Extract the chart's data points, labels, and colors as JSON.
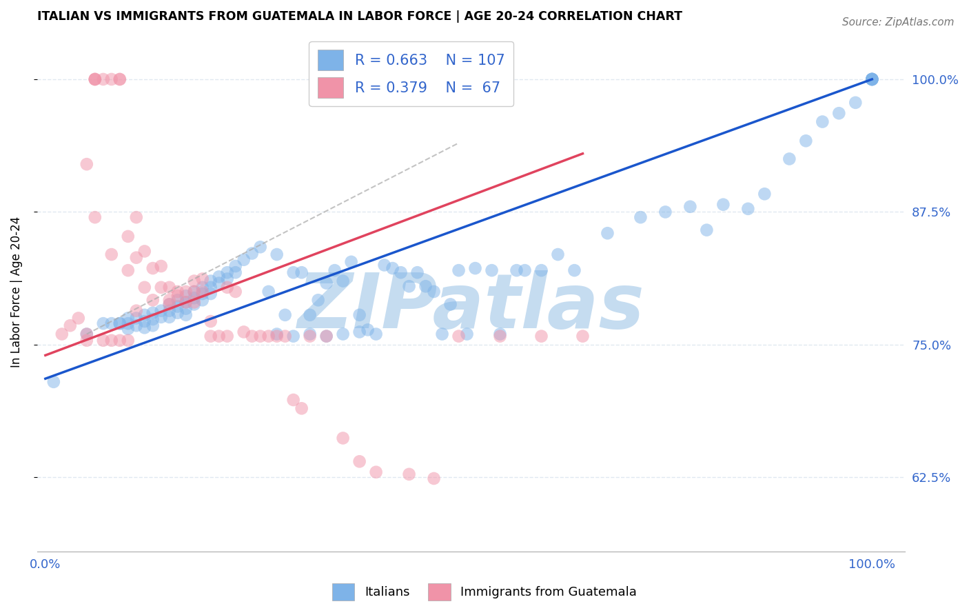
{
  "title": "ITALIAN VS IMMIGRANTS FROM GUATEMALA IN LABOR FORCE | AGE 20-24 CORRELATION CHART",
  "source": "Source: ZipAtlas.com",
  "ylabel": "In Labor Force | Age 20-24",
  "xlim": [
    -0.01,
    1.04
  ],
  "ylim": [
    0.555,
    1.045
  ],
  "yticks": [
    0.625,
    0.75,
    0.875,
    1.0
  ],
  "ytick_labels": [
    "62.5%",
    "75.0%",
    "87.5%",
    "100.0%"
  ],
  "xticks": [
    0.0,
    0.2,
    0.4,
    0.6,
    0.8,
    1.0
  ],
  "xtick_labels": [
    "0.0%",
    "",
    "",
    "",
    "",
    "100.0%"
  ],
  "blue_color": "#7EB3E8",
  "pink_color": "#F093A8",
  "blue_line_color": "#1A56CC",
  "pink_line_color": "#E0435E",
  "watermark": "ZIPatlas",
  "watermark_color": "#C5DCF0",
  "axis_color": "#3366CC",
  "grid_color": "#E0E8F0",
  "blue_scatter_x": [
    0.01,
    0.05,
    0.07,
    0.08,
    0.09,
    0.09,
    0.1,
    0.1,
    0.1,
    0.11,
    0.11,
    0.12,
    0.12,
    0.12,
    0.13,
    0.13,
    0.13,
    0.14,
    0.14,
    0.15,
    0.15,
    0.15,
    0.16,
    0.16,
    0.16,
    0.17,
    0.17,
    0.17,
    0.17,
    0.18,
    0.18,
    0.18,
    0.19,
    0.19,
    0.19,
    0.2,
    0.2,
    0.2,
    0.21,
    0.21,
    0.22,
    0.22,
    0.23,
    0.23,
    0.24,
    0.25,
    0.26,
    0.27,
    0.28,
    0.28,
    0.29,
    0.3,
    0.3,
    0.31,
    0.32,
    0.32,
    0.33,
    0.34,
    0.34,
    0.35,
    0.36,
    0.36,
    0.37,
    0.38,
    0.38,
    0.39,
    0.4,
    0.41,
    0.42,
    0.43,
    0.44,
    0.45,
    0.46,
    0.47,
    0.48,
    0.49,
    0.5,
    0.51,
    0.52,
    0.54,
    0.55,
    0.57,
    0.58,
    0.6,
    0.62,
    0.64,
    0.68,
    0.72,
    0.75,
    0.78,
    0.8,
    0.82,
    0.85,
    0.87,
    0.9,
    0.92,
    0.94,
    0.96,
    0.98,
    1.0,
    1.0,
    1.0,
    1.0,
    1.0,
    1.0,
    1.0
  ],
  "blue_scatter_y": [
    0.715,
    0.76,
    0.77,
    0.77,
    0.77,
    0.77,
    0.775,
    0.77,
    0.765,
    0.775,
    0.768,
    0.778,
    0.772,
    0.766,
    0.78,
    0.774,
    0.768,
    0.782,
    0.776,
    0.788,
    0.782,
    0.776,
    0.792,
    0.786,
    0.78,
    0.796,
    0.79,
    0.784,
    0.778,
    0.8,
    0.794,
    0.788,
    0.804,
    0.798,
    0.792,
    0.81,
    0.804,
    0.798,
    0.814,
    0.808,
    0.818,
    0.812,
    0.824,
    0.818,
    0.83,
    0.836,
    0.842,
    0.8,
    0.835,
    0.76,
    0.778,
    0.818,
    0.758,
    0.818,
    0.76,
    0.778,
    0.792,
    0.808,
    0.758,
    0.82,
    0.81,
    0.76,
    0.828,
    0.762,
    0.778,
    0.764,
    0.76,
    0.825,
    0.822,
    0.818,
    0.805,
    0.818,
    0.805,
    0.8,
    0.76,
    0.788,
    0.82,
    0.76,
    0.822,
    0.82,
    0.76,
    0.82,
    0.82,
    0.82,
    0.835,
    0.82,
    0.855,
    0.87,
    0.875,
    0.88,
    0.858,
    0.882,
    0.878,
    0.892,
    0.925,
    0.942,
    0.96,
    0.968,
    0.978,
    1.0,
    1.0,
    1.0,
    1.0,
    1.0,
    1.0,
    1.0
  ],
  "pink_scatter_x": [
    0.02,
    0.03,
    0.04,
    0.05,
    0.05,
    0.06,
    0.06,
    0.06,
    0.07,
    0.07,
    0.08,
    0.08,
    0.09,
    0.09,
    0.09,
    0.1,
    0.1,
    0.11,
    0.11,
    0.11,
    0.12,
    0.12,
    0.13,
    0.13,
    0.14,
    0.14,
    0.15,
    0.15,
    0.15,
    0.16,
    0.16,
    0.17,
    0.17,
    0.18,
    0.18,
    0.18,
    0.19,
    0.19,
    0.2,
    0.2,
    0.21,
    0.22,
    0.22,
    0.23,
    0.24,
    0.25,
    0.26,
    0.27,
    0.28,
    0.29,
    0.3,
    0.31,
    0.32,
    0.34,
    0.36,
    0.38,
    0.4,
    0.44,
    0.47,
    0.5,
    0.55,
    0.6,
    0.65,
    0.05,
    0.06,
    0.08,
    0.1
  ],
  "pink_scatter_y": [
    0.76,
    0.768,
    0.775,
    0.76,
    0.754,
    1.0,
    1.0,
    1.0,
    1.0,
    0.754,
    1.0,
    0.754,
    1.0,
    0.754,
    1.0,
    0.852,
    0.754,
    0.87,
    0.832,
    0.782,
    0.838,
    0.804,
    0.822,
    0.792,
    0.824,
    0.804,
    0.804,
    0.788,
    0.792,
    0.796,
    0.8,
    0.8,
    0.79,
    0.81,
    0.8,
    0.79,
    0.812,
    0.8,
    0.758,
    0.772,
    0.758,
    0.804,
    0.758,
    0.8,
    0.762,
    0.758,
    0.758,
    0.758,
    0.758,
    0.758,
    0.698,
    0.69,
    0.758,
    0.758,
    0.662,
    0.64,
    0.63,
    0.628,
    0.624,
    0.758,
    0.758,
    0.758,
    0.758,
    0.92,
    0.87,
    0.835,
    0.82
  ],
  "blue_line_x": [
    0.0,
    1.0
  ],
  "blue_line_y": [
    0.718,
    1.0
  ],
  "pink_line_x": [
    0.0,
    0.65
  ],
  "pink_line_y": [
    0.74,
    0.93
  ],
  "dashed_line_x": [
    0.05,
    0.5
  ],
  "dashed_line_y": [
    0.76,
    0.94
  ]
}
